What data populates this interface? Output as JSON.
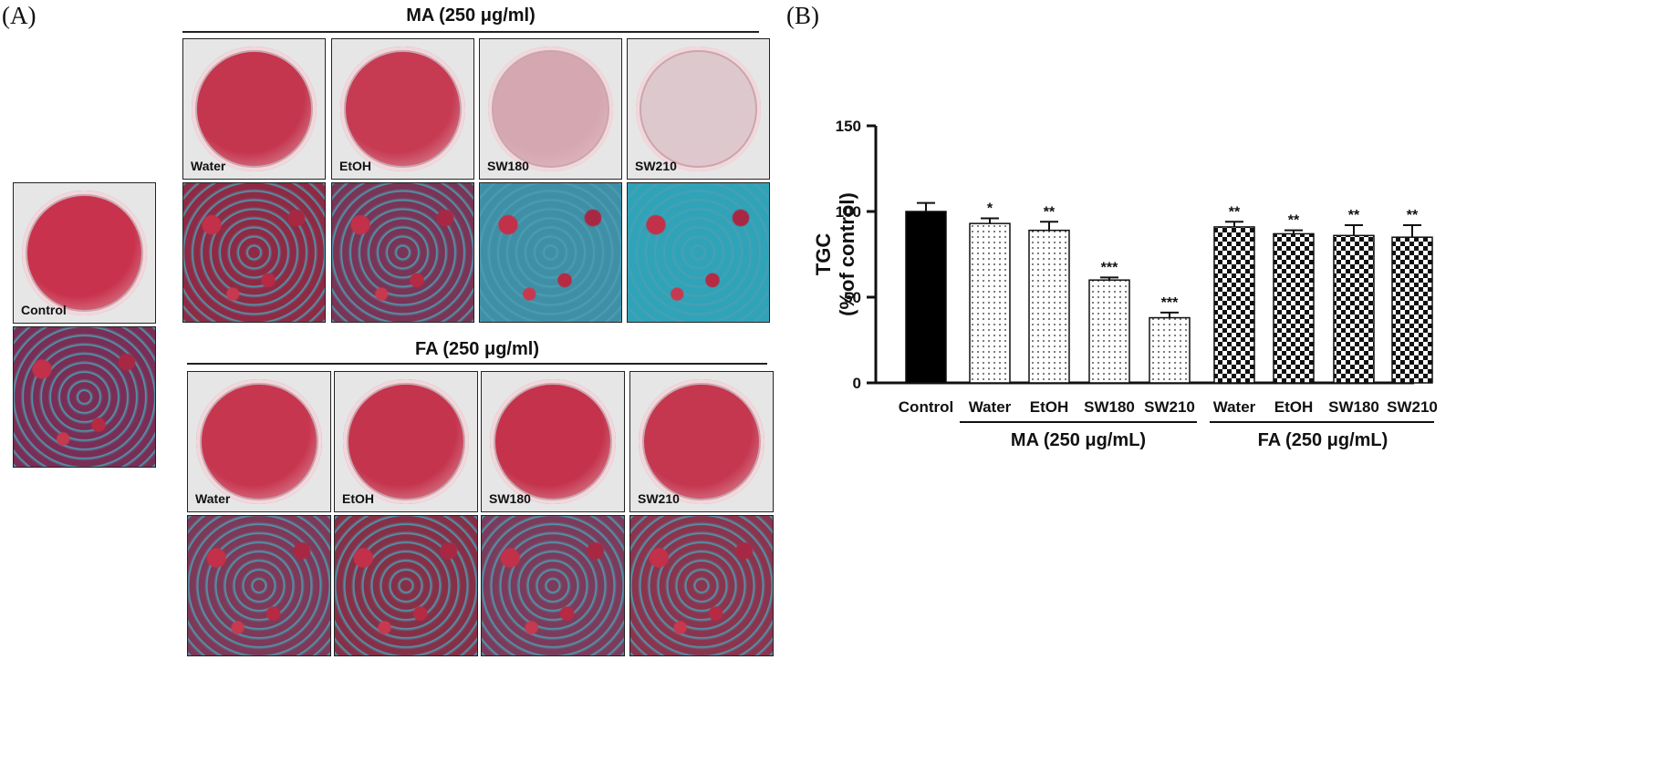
{
  "panel_a": {
    "letter": "(A)",
    "control_label": "Control",
    "ma_title": "MA (250 μg/ml)",
    "fa_title": "FA (250 μg/ml)",
    "treatment_labels": [
      "Water",
      "EtOH",
      "SW180",
      "SW210"
    ],
    "dish_colors": {
      "control": "#c8324c",
      "ma": [
        "#c4354e",
        "#c63a52",
        "#d5a7b1",
        "#dcc8cd"
      ],
      "fa": [
        "#c7364f",
        "#c4344d",
        "#c4324b",
        "#c5364f"
      ]
    },
    "micro_colors": {
      "control": "#7a2d55",
      "ma": [
        "#8f2a45",
        "#7a3456",
        "#3f8fa6",
        "#2fa3b8"
      ],
      "fa": [
        "#7e3858",
        "#863048",
        "#7c3b5b",
        "#8b344e"
      ]
    }
  },
  "panel_b": {
    "letter": "(B)",
    "group_labels": [
      "MA (250 μg/mL)",
      "FA (250 μg/mL)"
    ],
    "chart_data": {
      "type": "bar",
      "categories": [
        "Control",
        "Water",
        "EtOH",
        "SW180",
        "SW210",
        "Water",
        "EtOH",
        "SW180",
        "SW210"
      ],
      "values": [
        100,
        93,
        89,
        60,
        38,
        91,
        87,
        86,
        85
      ],
      "errors": [
        5,
        3,
        5,
        1.5,
        3,
        3,
        2,
        6,
        7
      ],
      "significance": [
        "",
        "*",
        "**",
        "***",
        "***",
        "**",
        "**",
        "**",
        "**"
      ],
      "fills": [
        "solid",
        "dots",
        "dots",
        "dots",
        "dots",
        "checker",
        "checker",
        "checker",
        "checker"
      ],
      "ylabel_line1": "TGC",
      "ylabel_line2": "(%of control)",
      "ylim": [
        0,
        150
      ],
      "yticks": [
        0,
        50,
        100,
        150
      ]
    }
  }
}
